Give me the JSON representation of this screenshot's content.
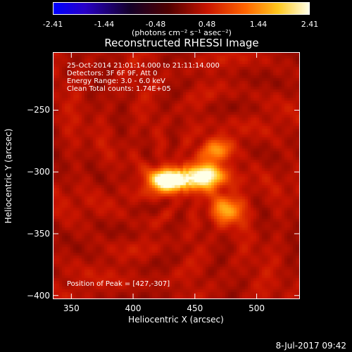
{
  "colorbar": {
    "ticks": [
      "-2.41",
      "-1.44",
      "-0.48",
      "0.48",
      "1.44",
      "2.41"
    ],
    "units_label": "(photons cm⁻² s⁻¹ asec⁻²)"
  },
  "chart_data": {
    "type": "heatmap",
    "title": "Reconstructed RHESSI Image",
    "xlabel": "Heliocentric X (arcsec)",
    "ylabel": "Heliocentric Y (arcsec)",
    "xlim": [
      335,
      535
    ],
    "ylim": [
      -403,
      -203
    ],
    "x_ticks": [
      350,
      400,
      450,
      500
    ],
    "y_ticks": [
      -250,
      -300,
      -350,
      -400
    ],
    "color_range": [
      -2.41,
      2.41
    ],
    "sources": [
      {
        "x": 427,
        "y": -307,
        "peak": 2.41
      },
      {
        "x": 458,
        "y": -303,
        "peak": 1.6
      },
      {
        "x": 476,
        "y": -330,
        "peak": 1.3
      },
      {
        "x": 467,
        "y": -282,
        "peak": 1.0
      }
    ],
    "annotations": [
      "25-Oct-2014 21:01:14.000 to 21:11:14.000",
      "Detectors: 3F 6F 9F, Att 0",
      "Energy Range: 3.0 - 6.0 keV",
      "Clean    Total counts: 1.74E+05"
    ],
    "peak_label": "Position of Peak = [427,-307]"
  },
  "footer": {
    "timestamp": "8-Jul-2017 09:42"
  }
}
